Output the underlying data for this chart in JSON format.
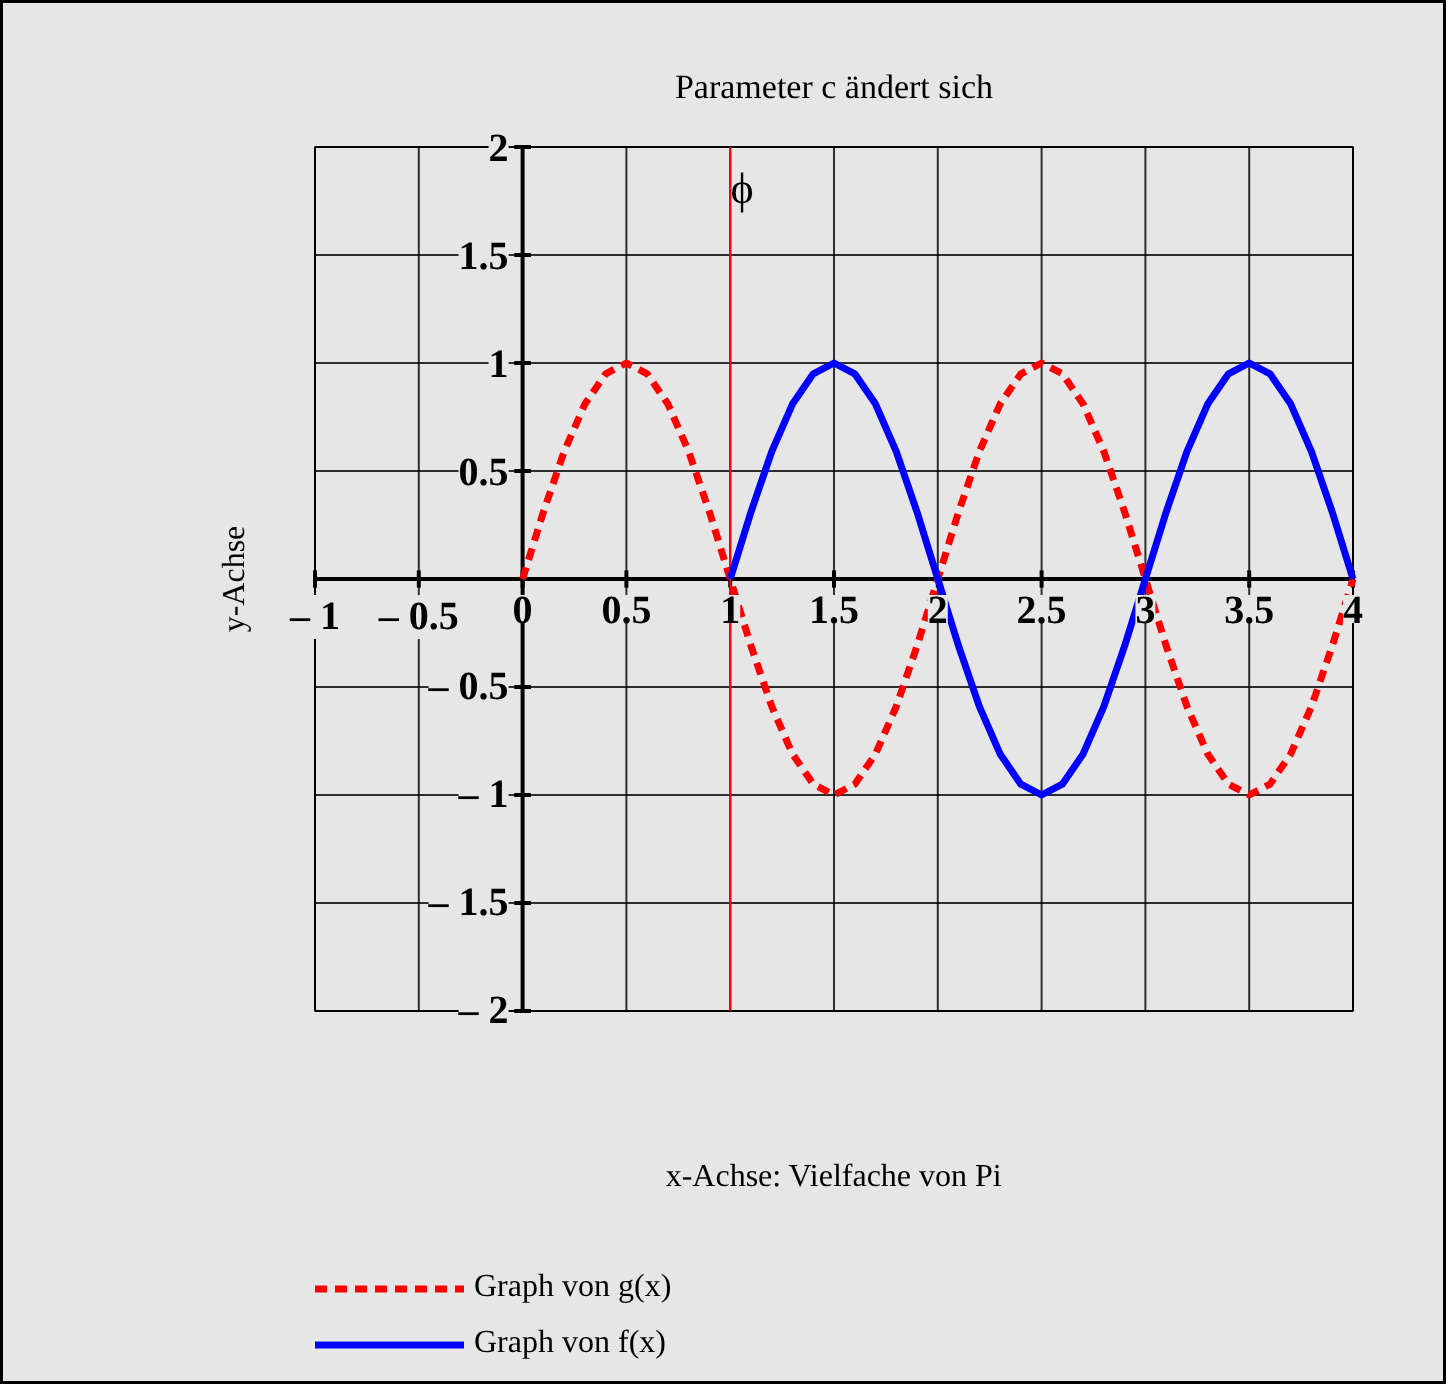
{
  "chart_data": {
    "type": "line",
    "title": "Parameter c ändert sich",
    "xlabel": "x-Achse: Vielfache von Pi",
    "ylabel": "y-Achse",
    "xlim": [
      -1,
      4
    ],
    "ylim": [
      -2,
      2
    ],
    "xticks": [
      {
        "value": -1,
        "label": "– 1"
      },
      {
        "value": -0.5,
        "label": "– 0.5"
      },
      0,
      0.5,
      1,
      1.5,
      2,
      2.5,
      3,
      3.5,
      4
    ],
    "yticks": [
      {
        "value": -2,
        "label": "– 2"
      },
      {
        "value": -1.5,
        "label": "– 1.5"
      },
      {
        "value": -1,
        "label": "– 1"
      },
      {
        "value": -0.5,
        "label": "– 0.5"
      },
      {
        "value": 0,
        "label": null
      },
      0.5,
      1,
      1.5,
      2
    ],
    "grid": true,
    "legend": "bottom",
    "ref_lines": [
      {
        "axis": "x",
        "value": 1,
        "label": "ϕ",
        "color": "#ff0000"
      }
    ],
    "series": [
      {
        "name": "Graph von g(x)",
        "color": "#ff0000",
        "line_style": "dashed",
        "x": [
          0,
          0.1,
          0.2,
          0.3,
          0.4,
          0.5,
          0.6,
          0.7,
          0.8,
          0.9,
          1,
          1.1,
          1.2,
          1.3,
          1.4,
          1.5,
          1.6,
          1.7,
          1.8,
          1.9,
          2,
          2.1,
          2.2,
          2.3,
          2.4,
          2.5,
          2.6,
          2.7,
          2.8,
          2.9,
          3,
          3.1,
          3.2,
          3.3,
          3.4,
          3.5,
          3.6,
          3.7,
          3.8,
          3.9,
          4
        ],
        "values": [
          0,
          0.31,
          0.59,
          0.81,
          0.95,
          1,
          0.95,
          0.81,
          0.59,
          0.31,
          0,
          -0.31,
          -0.59,
          -0.81,
          -0.95,
          -1,
          -0.95,
          -0.81,
          -0.59,
          -0.31,
          0,
          0.31,
          0.59,
          0.81,
          0.95,
          1,
          0.95,
          0.81,
          0.59,
          0.31,
          0,
          -0.31,
          -0.59,
          -0.81,
          -0.95,
          -1,
          -0.95,
          -0.81,
          -0.59,
          -0.31,
          0
        ]
      },
      {
        "name": "Graph von f(x)",
        "color": "#0000ff",
        "line_style": "solid",
        "x": [
          1,
          1.1,
          1.2,
          1.3,
          1.4,
          1.5,
          1.6,
          1.7,
          1.8,
          1.9,
          2,
          2.1,
          2.2,
          2.3,
          2.4,
          2.5,
          2.6,
          2.7,
          2.8,
          2.9,
          3,
          3.1,
          3.2,
          3.3,
          3.4,
          3.5,
          3.6,
          3.7,
          3.8,
          3.9,
          4
        ],
        "values": [
          0,
          0.31,
          0.59,
          0.81,
          0.95,
          1,
          0.95,
          0.81,
          0.59,
          0.31,
          0,
          -0.31,
          -0.59,
          -0.81,
          -0.95,
          -1,
          -0.95,
          -0.81,
          -0.59,
          -0.31,
          0,
          0.31,
          0.59,
          0.81,
          0.95,
          1,
          0.95,
          0.81,
          0.59,
          0.31,
          0
        ]
      }
    ]
  }
}
